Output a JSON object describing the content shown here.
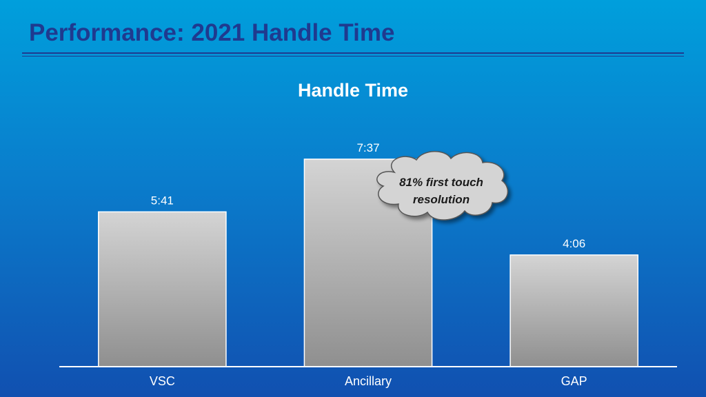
{
  "header": {
    "title": "Performance: 2021 Handle Time"
  },
  "chart_data": {
    "type": "bar",
    "title": "Handle Time",
    "xlabel": "",
    "ylabel": "",
    "unit": "minutes:seconds",
    "categories": [
      "VSC",
      "Ancillary",
      "GAP"
    ],
    "values": [
      5.683,
      7.617,
      4.1
    ],
    "data_labels": [
      "5:41",
      "7:37",
      "4:06"
    ],
    "ylim": [
      0,
      8.5
    ],
    "grid": false,
    "legend": "none",
    "bar_color": "#bdbdbd"
  },
  "callout": {
    "line1": "81% first touch",
    "line2": "resolution"
  }
}
